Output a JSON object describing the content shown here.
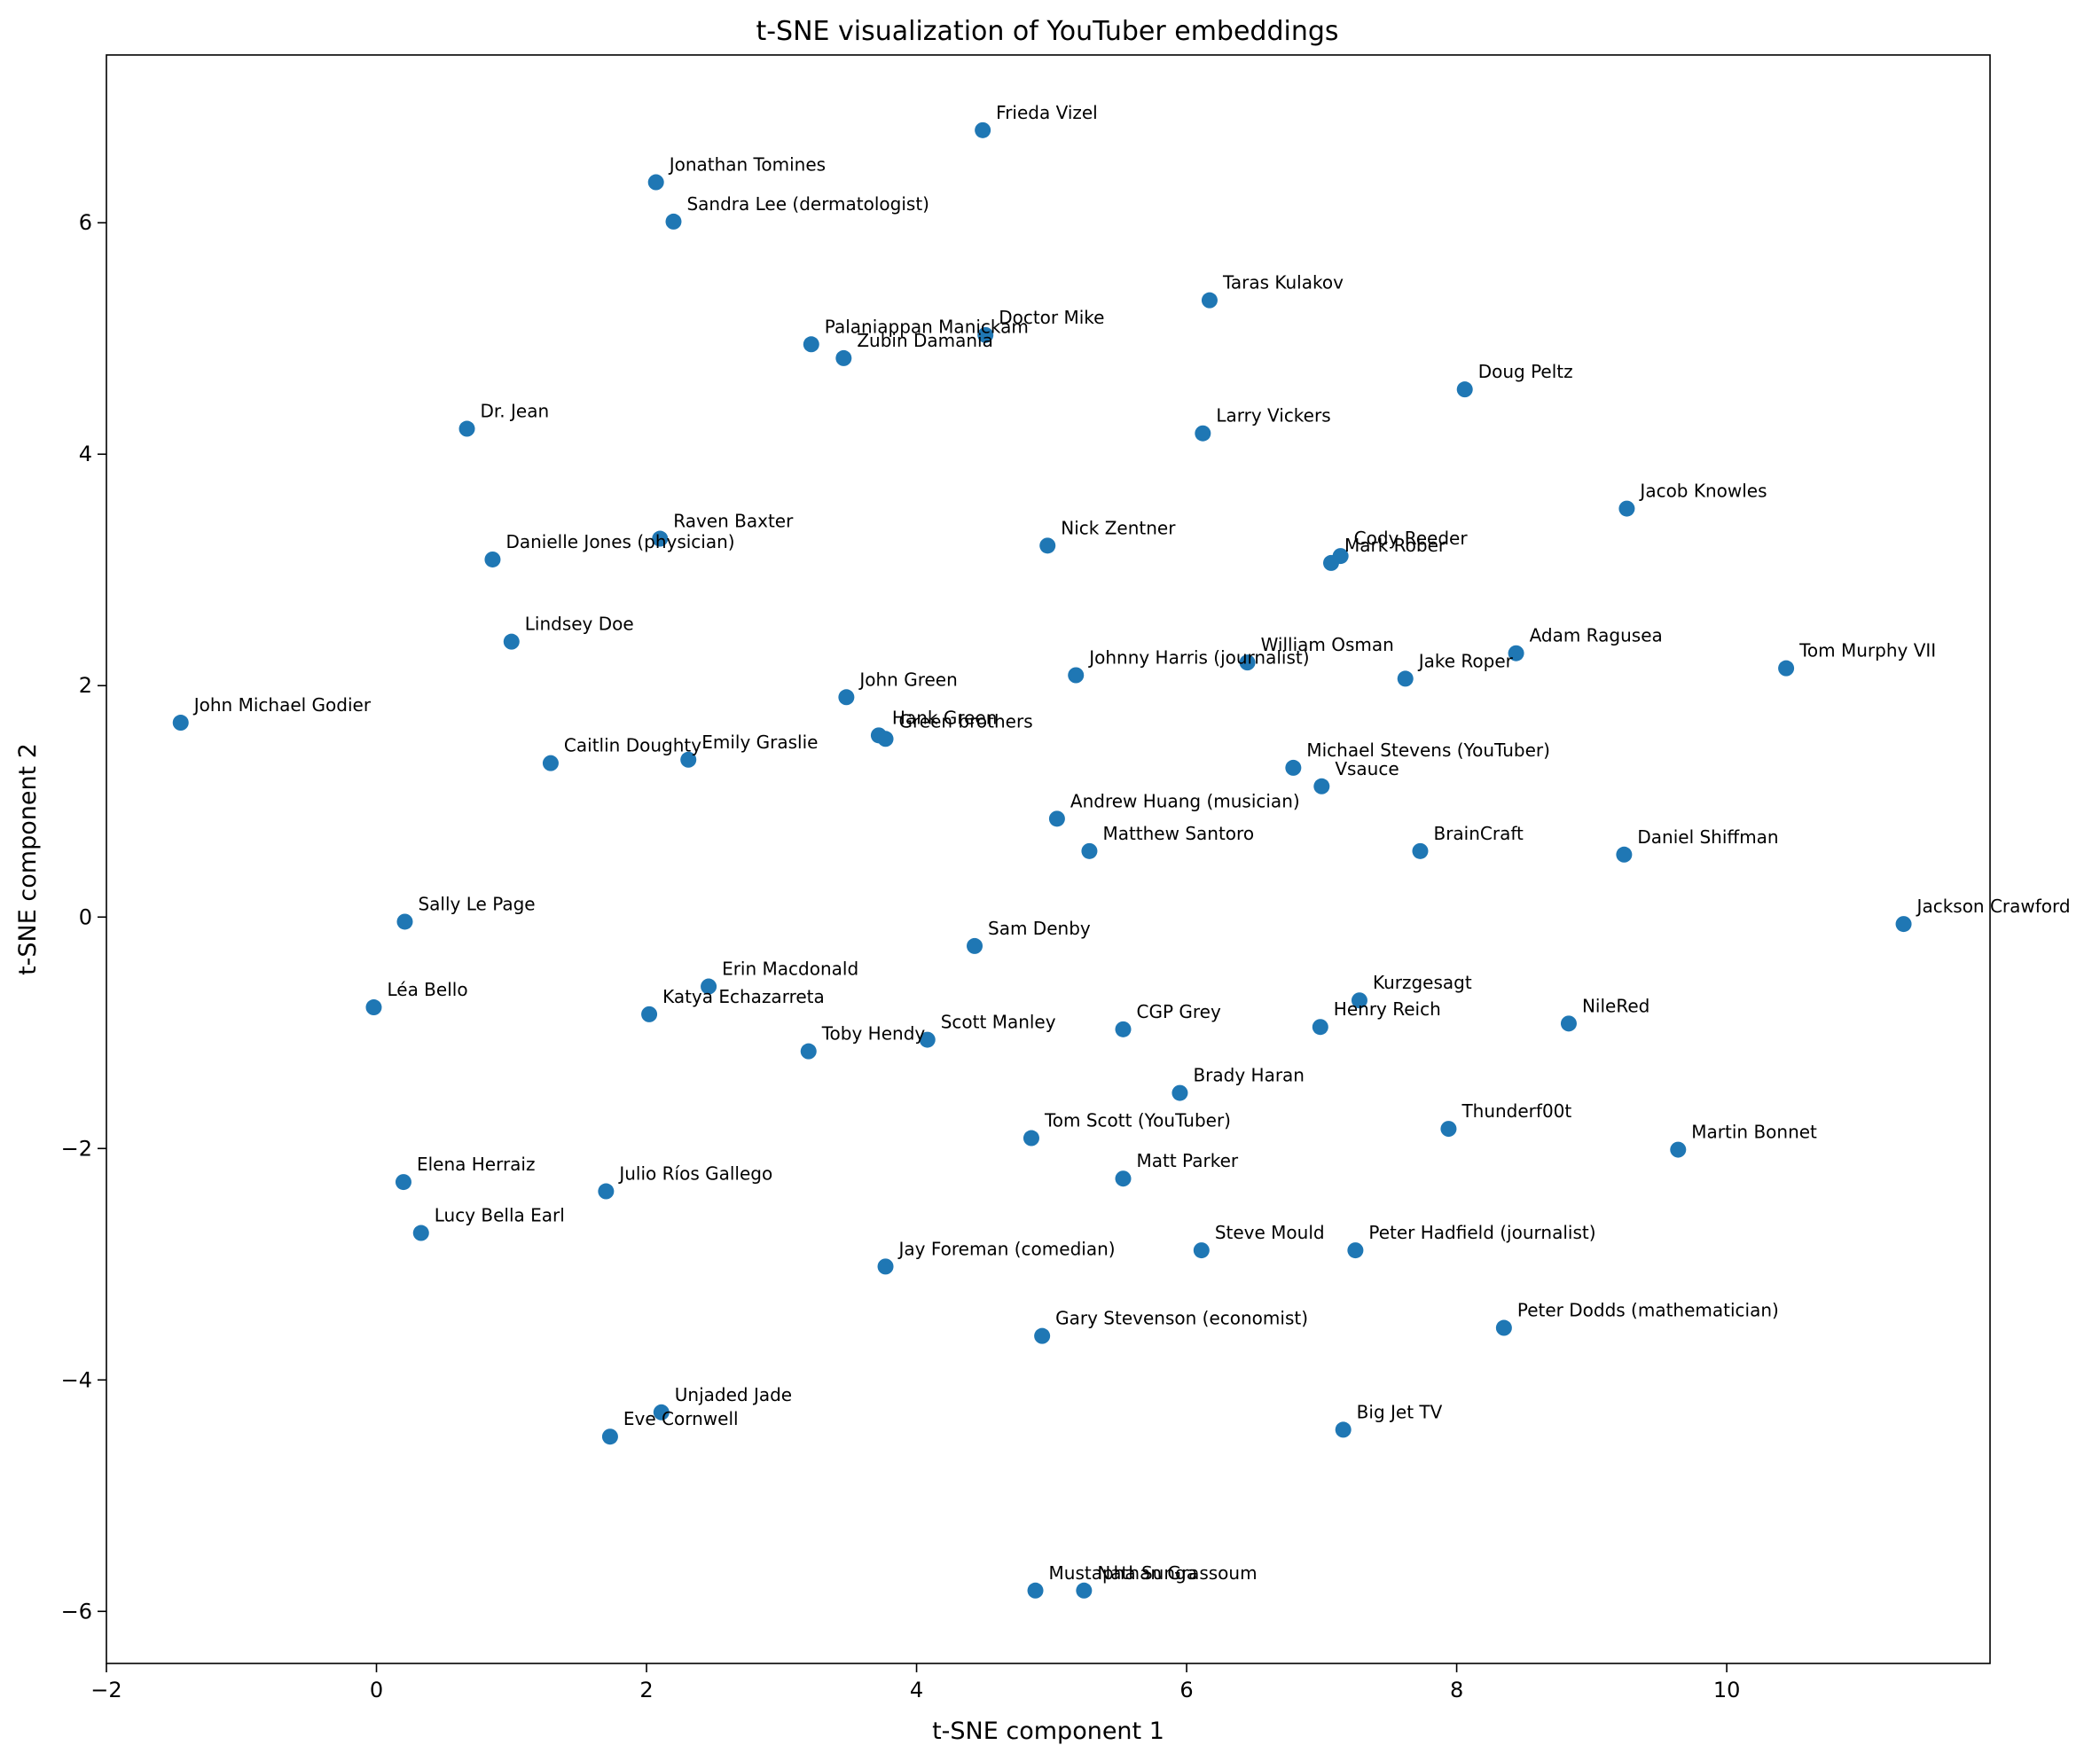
{
  "chart_data": {
    "type": "scatter",
    "title": "t-SNE visualization of YouTuber embeddings",
    "xlabel": "t-SNE component 1",
    "ylabel": "t-SNE component 2",
    "xlim": [
      -2.0,
      11.95
    ],
    "ylim": [
      -6.45,
      7.45
    ],
    "xticks": [
      -2,
      0,
      2,
      4,
      6,
      8,
      10
    ],
    "yticks": [
      -6,
      -4,
      -2,
      0,
      2,
      4,
      6
    ],
    "grid": false,
    "marker_color": "#1f77b4",
    "points": [
      {
        "label": "Frieda Vizel",
        "x": 4.49,
        "y": 6.8
      },
      {
        "label": "Jonathan Tomines",
        "x": 2.07,
        "y": 6.35
      },
      {
        "label": "Sandra Lee (dermatologist)",
        "x": 2.2,
        "y": 6.01
      },
      {
        "label": "Taras Kulakov",
        "x": 6.17,
        "y": 5.33
      },
      {
        "label": "Doctor Mike",
        "x": 4.51,
        "y": 5.03
      },
      {
        "label": "Palaniappan Manickam",
        "x": 3.22,
        "y": 4.95
      },
      {
        "label": "Zubin Damania",
        "x": 3.46,
        "y": 4.83
      },
      {
        "label": "Doug Peltz",
        "x": 8.06,
        "y": 4.56
      },
      {
        "label": "Dr. Jean",
        "x": 0.67,
        "y": 4.22
      },
      {
        "label": "Larry Vickers",
        "x": 6.12,
        "y": 4.18
      },
      {
        "label": "Jacob Knowles",
        "x": 9.26,
        "y": 3.53
      },
      {
        "label": "Raven Baxter",
        "x": 2.1,
        "y": 3.27
      },
      {
        "label": "Nick Zentner",
        "x": 4.97,
        "y": 3.21
      },
      {
        "label": "Danielle Jones (physician)",
        "x": 0.86,
        "y": 3.09
      },
      {
        "label": "Cody Reeder",
        "x": 7.14,
        "y": 3.12
      },
      {
        "label": "Mark Rober",
        "x": 7.07,
        "y": 3.06
      },
      {
        "label": "Lindsey Doe",
        "x": 1.0,
        "y": 2.38
      },
      {
        "label": "Adam Ragusea",
        "x": 8.44,
        "y": 2.28
      },
      {
        "label": "William Osman",
        "x": 6.45,
        "y": 2.2
      },
      {
        "label": "Tom Murphy VII",
        "x": 10.44,
        "y": 2.15
      },
      {
        "label": "Johnny Harris (journalist)",
        "x": 5.18,
        "y": 2.09
      },
      {
        "label": "Jake Roper",
        "x": 7.62,
        "y": 2.06
      },
      {
        "label": "John Green",
        "x": 3.48,
        "y": 1.9
      },
      {
        "label": "John Michael Godier",
        "x": -1.45,
        "y": 1.68
      },
      {
        "label": "Hank Green",
        "x": 3.72,
        "y": 1.57
      },
      {
        "label": "Green brothers",
        "x": 3.77,
        "y": 1.54
      },
      {
        "label": "Emily Graslie",
        "x": 2.31,
        "y": 1.36
      },
      {
        "label": "Caitlin Doughty",
        "x": 1.29,
        "y": 1.33
      },
      {
        "label": "Michael Stevens (YouTuber)",
        "x": 6.79,
        "y": 1.29
      },
      {
        "label": "Vsauce",
        "x": 7.0,
        "y": 1.13
      },
      {
        "label": "Andrew Huang (musician)",
        "x": 5.04,
        "y": 0.85
      },
      {
        "label": "Matthew Santoro",
        "x": 5.28,
        "y": 0.57
      },
      {
        "label": "BrainCraft",
        "x": 7.73,
        "y": 0.57
      },
      {
        "label": "Daniel Shiffman",
        "x": 9.24,
        "y": 0.54
      },
      {
        "label": "Sally Le Page",
        "x": 0.21,
        "y": -0.04
      },
      {
        "label": "Jackson Crawford",
        "x": 11.31,
        "y": -0.06
      },
      {
        "label": "Sam Denby",
        "x": 4.43,
        "y": -0.25
      },
      {
        "label": "Erin Macdonald",
        "x": 2.46,
        "y": -0.6
      },
      {
        "label": "Kurzgesagt",
        "x": 7.28,
        "y": -0.72
      },
      {
        "label": "Léa Bello",
        "x": -0.02,
        "y": -0.78
      },
      {
        "label": "Katya Echazarreta",
        "x": 2.02,
        "y": -0.84
      },
      {
        "label": "NileRed",
        "x": 8.83,
        "y": -0.92
      },
      {
        "label": "Henry Reich",
        "x": 6.99,
        "y": -0.95
      },
      {
        "label": "CGP Grey",
        "x": 5.53,
        "y": -0.97
      },
      {
        "label": "Scott Manley",
        "x": 4.08,
        "y": -1.06
      },
      {
        "label": "Toby Hendy",
        "x": 3.2,
        "y": -1.16
      },
      {
        "label": "Brady Haran",
        "x": 5.95,
        "y": -1.52
      },
      {
        "label": "Thunderf00t",
        "x": 7.94,
        "y": -1.83
      },
      {
        "label": "Tom Scott (YouTuber)",
        "x": 4.85,
        "y": -1.91
      },
      {
        "label": "Martin Bonnet",
        "x": 9.64,
        "y": -2.01
      },
      {
        "label": "Matt Parker",
        "x": 5.53,
        "y": -2.26
      },
      {
        "label": "Elena Herraiz",
        "x": 0.2,
        "y": -2.29
      },
      {
        "label": "Julio Ríos Gallego",
        "x": 1.7,
        "y": -2.37
      },
      {
        "label": "Lucy Bella Earl",
        "x": 0.33,
        "y": -2.73
      },
      {
        "label": "Steve Mould",
        "x": 6.11,
        "y": -2.88
      },
      {
        "label": "Peter Hadfield (journalist)",
        "x": 7.25,
        "y": -2.88
      },
      {
        "label": "Jay Foreman (comedian)",
        "x": 3.77,
        "y": -3.02
      },
      {
        "label": "Peter Dodds (mathematician)",
        "x": 8.35,
        "y": -3.55
      },
      {
        "label": "Gary Stevenson (economist)",
        "x": 4.93,
        "y": -3.62
      },
      {
        "label": "Unjaded Jade",
        "x": 2.11,
        "y": -4.28
      },
      {
        "label": "Big Jet TV",
        "x": 7.16,
        "y": -4.43
      },
      {
        "label": "Eve Cornwell",
        "x": 1.73,
        "y": -4.49
      },
      {
        "label": "Mustapha Sunga",
        "x": 4.88,
        "y": -5.82
      },
      {
        "label": "Nathan Grassoum",
        "x": 5.24,
        "y": -5.82
      }
    ]
  }
}
